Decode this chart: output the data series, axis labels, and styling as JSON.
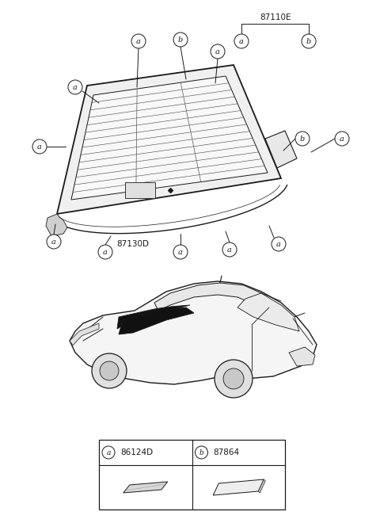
{
  "background_color": "#ffffff",
  "part_label_top": "87110E",
  "part_label_87130D": "87130D",
  "legend_label_a": "86124D",
  "legend_label_b": "87864",
  "fig_width": 4.8,
  "fig_height": 6.55,
  "dpi": 100
}
